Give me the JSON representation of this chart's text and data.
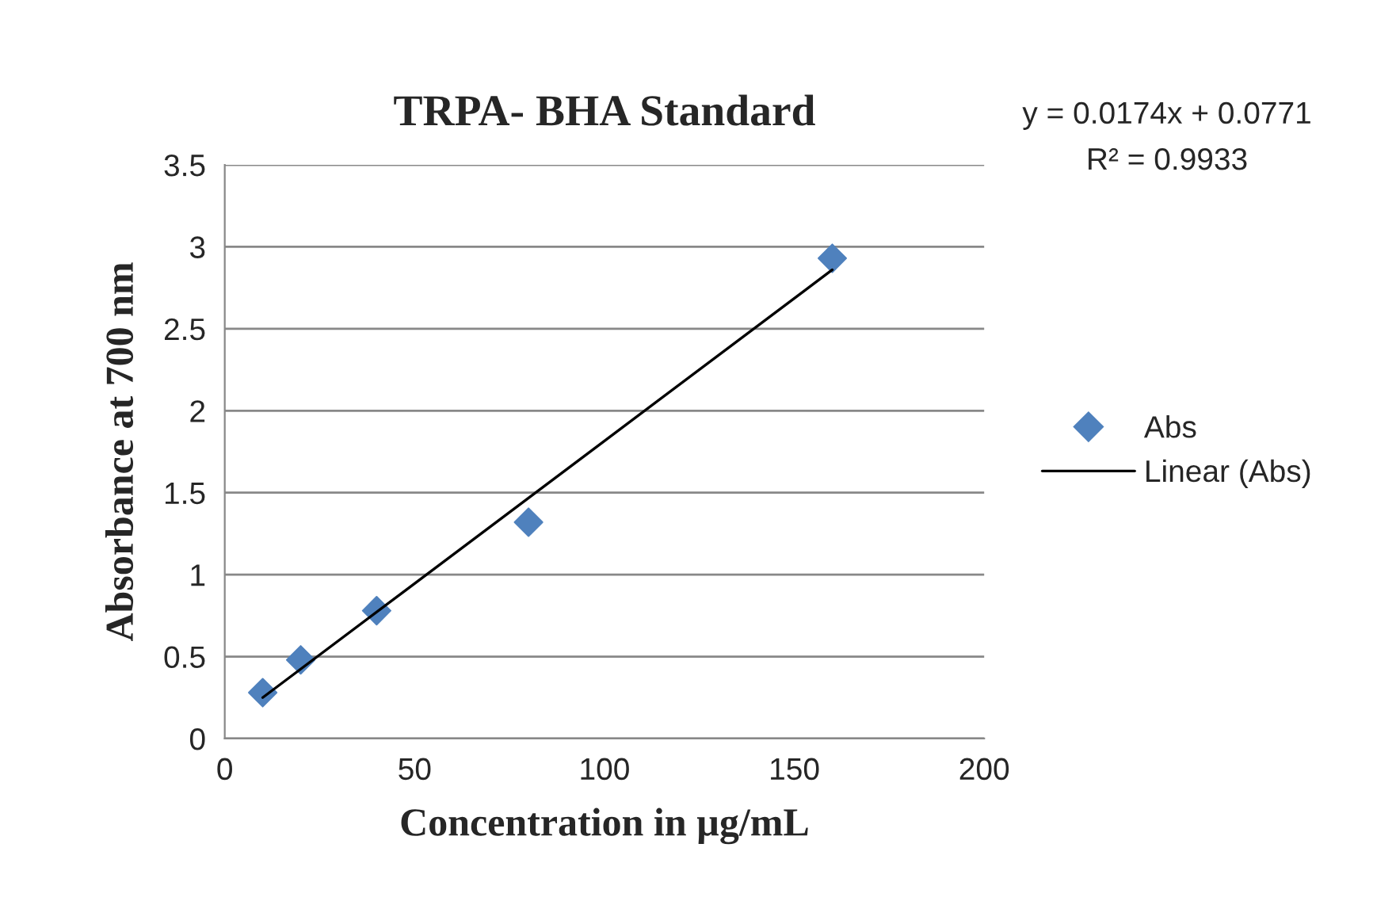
{
  "chart_data": {
    "type": "scatter",
    "title": "TRPA- BHA Standard",
    "xlabel": "Concentration in µg/mL",
    "ylabel": "Absorbance at 700 nm",
    "annotations": [
      "y = 0.0174x + 0.0771",
      "R² = 0.9933"
    ],
    "series": [
      {
        "name": "Abs",
        "color": "#4f81bd",
        "marker": "diamond",
        "x": [
          10,
          20,
          40,
          80,
          160
        ],
        "values": [
          0.28,
          0.48,
          0.78,
          1.32,
          2.93
        ]
      },
      {
        "name": "Linear (Abs)",
        "type": "line",
        "color": "#000000",
        "marker": "none",
        "line_style": "solid",
        "x": [
          10,
          160
        ],
        "values": [
          0.25,
          2.86
        ]
      }
    ],
    "xlim": [
      0,
      200
    ],
    "xticks": [
      0,
      50,
      100,
      150,
      200
    ],
    "ylim": [
      0,
      3.5
    ],
    "yticks": [
      0,
      0.5,
      1,
      1.5,
      2,
      2.5,
      3,
      3.5
    ],
    "grid": "y",
    "legend": "right"
  }
}
